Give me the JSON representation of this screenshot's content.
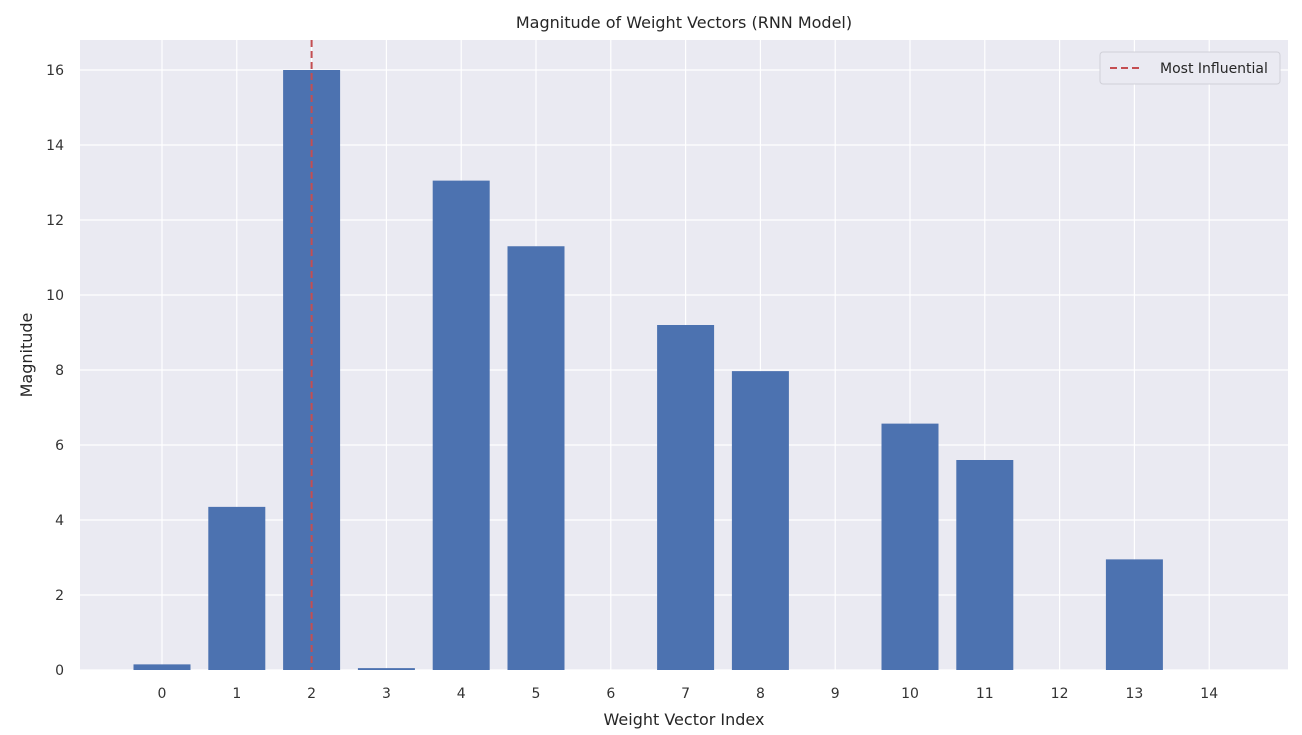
{
  "chart_data": {
    "type": "bar",
    "title": "Magnitude of Weight Vectors (RNN Model)",
    "xlabel": "Weight Vector Index",
    "ylabel": "Magnitude",
    "categories": [
      "0",
      "1",
      "2",
      "3",
      "4",
      "5",
      "6",
      "7",
      "8",
      "9",
      "10",
      "11",
      "12",
      "13",
      "14"
    ],
    "values": [
      0.15,
      4.35,
      16.0,
      0.05,
      13.05,
      11.3,
      0.0,
      9.2,
      7.97,
      0.0,
      6.57,
      5.6,
      0.0,
      2.95,
      0.0
    ],
    "ylim": [
      0,
      16.8
    ],
    "yticks": [
      0,
      2,
      4,
      6,
      8,
      10,
      12,
      14,
      16
    ],
    "grid": true,
    "bar_color": "#4c72b0",
    "highlight": {
      "index": 2,
      "color": "#c44e52",
      "style": "dashed"
    },
    "legend": {
      "position": "top-right",
      "entries": [
        {
          "label": "Most Influential",
          "color": "#c44e52",
          "style": "dashed"
        }
      ]
    }
  }
}
